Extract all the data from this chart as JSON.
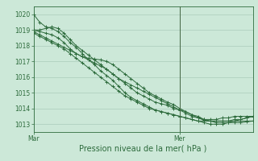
{
  "bg_color": "#cce8d8",
  "grid_color": "#aaccbb",
  "line_color": "#2d6b3c",
  "xlabel": "Pression niveau de la mer( hPa )",
  "ylim": [
    1012.5,
    1020.5
  ],
  "xlim": [
    0,
    36
  ],
  "xticks": [
    0,
    24
  ],
  "xtick_labels": [
    "Mar",
    "Mer"
  ],
  "yticks": [
    1013,
    1014,
    1015,
    1016,
    1017,
    1018,
    1019,
    1020
  ],
  "series": [
    [
      1020.0,
      1019.5,
      1019.2,
      1019.1,
      1018.9,
      1018.6,
      1018.2,
      1017.9,
      1017.5,
      1017.1,
      1016.8,
      1016.4,
      1016.1,
      1015.8,
      1015.4,
      1015.0,
      1014.7,
      1014.5,
      1014.3,
      1014.1,
      1013.9,
      1013.8,
      1013.7,
      1013.6,
      1013.5,
      1013.4,
      1013.3,
      1013.2,
      1013.2,
      1013.2,
      1013.2,
      1013.2,
      1013.2,
      1013.3,
      1013.3,
      1013.4,
      1013.5
    ],
    [
      1019.0,
      1019.0,
      1019.1,
      1019.2,
      1019.1,
      1018.8,
      1018.4,
      1018.0,
      1017.7,
      1017.4,
      1017.1,
      1016.8,
      1016.5,
      1016.2,
      1015.9,
      1015.6,
      1015.3,
      1015.0,
      1014.8,
      1014.6,
      1014.4,
      1014.3,
      1014.2,
      1014.0,
      1013.9,
      1013.7,
      1013.5,
      1013.4,
      1013.3,
      1013.3,
      1013.3,
      1013.4,
      1013.4,
      1013.5,
      1013.5,
      1013.5,
      1013.5
    ],
    [
      1019.0,
      1018.9,
      1018.8,
      1018.7,
      1018.5,
      1018.2,
      1017.8,
      1017.5,
      1017.3,
      1017.2,
      1017.15,
      1017.1,
      1017.0,
      1016.8,
      1016.5,
      1016.2,
      1015.9,
      1015.6,
      1015.3,
      1015.0,
      1014.8,
      1014.6,
      1014.4,
      1014.25,
      1014.0,
      1013.8,
      1013.6,
      1013.4,
      1013.25,
      1013.2,
      1013.2,
      1013.2,
      1013.2,
      1013.2,
      1013.2,
      1013.2,
      1013.2
    ],
    [
      1018.9,
      1018.7,
      1018.5,
      1018.3,
      1018.1,
      1017.9,
      1017.7,
      1017.5,
      1017.3,
      1017.1,
      1016.9,
      1016.7,
      1016.5,
      1016.2,
      1015.9,
      1015.7,
      1015.5,
      1015.3,
      1015.1,
      1014.9,
      1014.7,
      1014.5,
      1014.3,
      1014.1,
      1013.9,
      1013.8,
      1013.6,
      1013.5,
      1013.3,
      1013.2,
      1013.1,
      1013.1,
      1013.1,
      1013.1,
      1013.1,
      1013.15,
      1013.2
    ],
    [
      1018.8,
      1018.6,
      1018.4,
      1018.2,
      1018.0,
      1017.8,
      1017.5,
      1017.2,
      1016.9,
      1016.6,
      1016.3,
      1016.0,
      1015.7,
      1015.4,
      1015.1,
      1014.8,
      1014.6,
      1014.4,
      1014.2,
      1014.0,
      1013.9,
      1013.8,
      1013.7,
      1013.6,
      1013.5,
      1013.4,
      1013.3,
      1013.2,
      1013.1,
      1013.0,
      1013.0,
      1013.0,
      1013.1,
      1013.2,
      1013.3,
      1013.4,
      1013.5
    ]
  ],
  "vline_x": 24,
  "vline_color": "#446644",
  "ylabel_fontsize": 5.5,
  "xlabel_fontsize": 7,
  "tick_fontsize": 5.5,
  "linewidth": 0.7,
  "markersize": 2.5,
  "markeredgewidth": 0.7
}
